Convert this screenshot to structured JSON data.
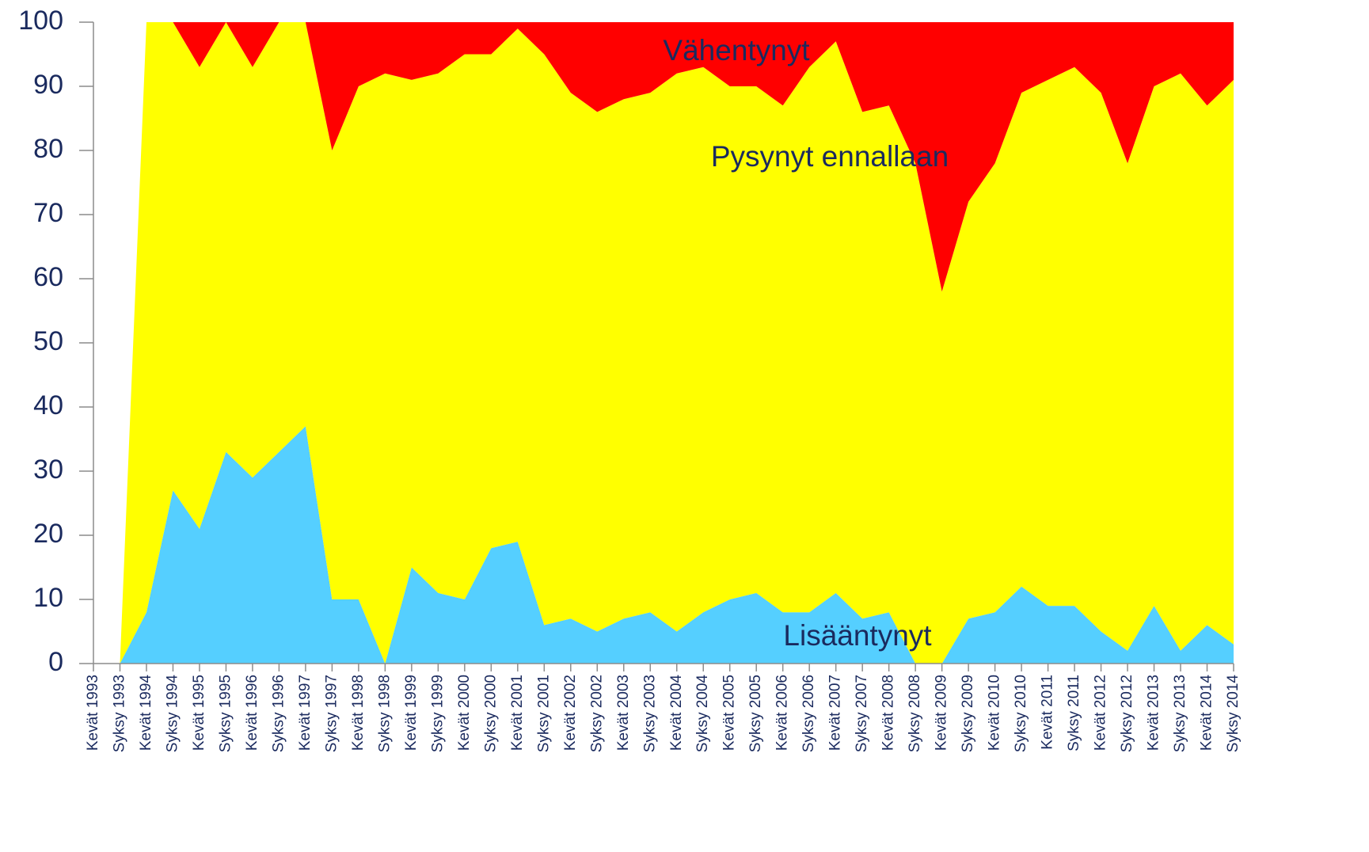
{
  "chart_data": {
    "type": "stacked_area",
    "categories": [
      "Kevät 1993",
      "Syksy 1993",
      "Kevät 1994",
      "Syksy 1994",
      "Kevät 1995",
      "Syksy 1995",
      "Kevät 1996",
      "Syksy 1996",
      "Kevät 1997",
      "Syksy 1997",
      "Kevät 1998",
      "Syksy 1998",
      "Kevät 1999",
      "Syksy 1999",
      "Kevät 2000",
      "Syksy 2000",
      "Kevät 2001",
      "Syksy 2001",
      "Kevät 2002",
      "Syksy 2002",
      "Kevät 2003",
      "Syksy 2003",
      "Kevät 2004",
      "Syksy 2004",
      "Kevät 2005",
      "Syksy 2005",
      "Kevät 2006",
      "Syksy 2006",
      "Kevät 2007",
      "Syksy 2007",
      "Kevät 2008",
      "Syksy 2008",
      "Kevät 2009",
      "Syksy 2009",
      "Kevät 2010",
      "Syksy 2010",
      "Kevät 2011",
      "Syksy 2011",
      "Kevät 2012",
      "Syksy 2012",
      "Kevät 2013",
      "Syksy 2013",
      "Kevät 2014",
      "Syksy 2014"
    ],
    "series": [
      {
        "name": "Lisääntynyt",
        "color": "#55cfff",
        "values": [
          null,
          0,
          8,
          27,
          21,
          33,
          29,
          33,
          37,
          10,
          10,
          0,
          15,
          11,
          10,
          18,
          19,
          6,
          7,
          5,
          7,
          8,
          5,
          8,
          10,
          11,
          8,
          8,
          11,
          7,
          8,
          0,
          0,
          7,
          8,
          12,
          9,
          9,
          5,
          2,
          9,
          2,
          6,
          3
        ]
      },
      {
        "name": "Pysynyt ennallaan",
        "color": "#ffff00",
        "values": [
          null,
          0,
          92,
          73,
          72,
          67,
          64,
          67,
          63,
          70,
          80,
          92,
          76,
          81,
          85,
          77,
          80,
          89,
          82,
          81,
          81,
          81,
          87,
          85,
          80,
          79,
          79,
          85,
          86,
          79,
          79,
          78,
          58,
          65,
          70,
          77,
          82,
          84,
          84,
          76,
          81,
          90,
          81,
          88
        ]
      },
      {
        "name": "Vähentynyt",
        "color": "#ff0000",
        "values": [
          null,
          0,
          0,
          0,
          7,
          0,
          7,
          0,
          0,
          20,
          10,
          8,
          9,
          8,
          5,
          5,
          1,
          5,
          11,
          14,
          12,
          11,
          8,
          7,
          10,
          10,
          13,
          7,
          3,
          14,
          13,
          22,
          42,
          28,
          22,
          11,
          9,
          7,
          11,
          22,
          10,
          8,
          13,
          9
        ]
      }
    ],
    "ylim": [
      0,
      100
    ],
    "yticks": [
      0,
      10,
      20,
      30,
      40,
      50,
      60,
      70,
      80,
      90,
      100
    ],
    "grid": false
  }
}
